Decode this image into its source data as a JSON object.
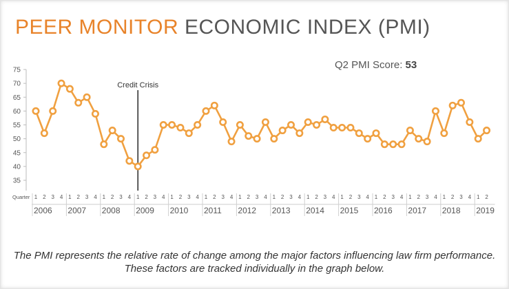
{
  "title": {
    "part1": "PEER MONITOR",
    "part2": "ECONOMIC INDEX (PMI)"
  },
  "score": {
    "label": "Q2 PMI Score:",
    "value": "53"
  },
  "caption": "The PMI represents the relative rate of change among the major factors influencing law firm performance. These factors are tracked individually in the graph below.",
  "colors": {
    "line": "#f0a040",
    "accent": "#e8832a",
    "text": "#555555"
  },
  "chart_data": {
    "type": "line",
    "title": "PEER MONITOR ECONOMIC INDEX (PMI)",
    "xlabel": "Quarter",
    "ylabel": "",
    "ylim": [
      35,
      75
    ],
    "yticks": [
      35,
      40,
      45,
      50,
      55,
      60,
      65,
      70,
      75
    ],
    "grid": false,
    "legend": "none",
    "years": [
      {
        "label": "2006",
        "quarters": [
          "1",
          "2",
          "3",
          "4"
        ]
      },
      {
        "label": "2007",
        "quarters": [
          "1",
          "2",
          "3",
          "4"
        ]
      },
      {
        "label": "2008",
        "quarters": [
          "1",
          "2",
          "3",
          "4"
        ]
      },
      {
        "label": "2009",
        "quarters": [
          "1",
          "2",
          "3",
          "4"
        ]
      },
      {
        "label": "2010",
        "quarters": [
          "1",
          "2",
          "3",
          "4"
        ]
      },
      {
        "label": "2011",
        "quarters": [
          "1",
          "2",
          "3",
          "4"
        ]
      },
      {
        "label": "2012",
        "quarters": [
          "1",
          "2",
          "3",
          "4"
        ]
      },
      {
        "label": "2013",
        "quarters": [
          "1",
          "2",
          "3",
          "4"
        ]
      },
      {
        "label": "2014",
        "quarters": [
          "1",
          "2",
          "3",
          "4"
        ]
      },
      {
        "label": "2015",
        "quarters": [
          "1",
          "2",
          "3",
          "4"
        ]
      },
      {
        "label": "2016",
        "quarters": [
          "1",
          "2",
          "3",
          "4"
        ]
      },
      {
        "label": "2017",
        "quarters": [
          "1",
          "2",
          "3",
          "4"
        ]
      },
      {
        "label": "2018",
        "quarters": [
          "1",
          "2",
          "3",
          "4"
        ]
      },
      {
        "label": "2019",
        "quarters": [
          "1",
          "2"
        ]
      }
    ],
    "values": [
      60,
      52,
      60,
      70,
      68,
      63,
      65,
      59,
      48,
      53,
      50,
      42,
      40,
      44,
      46,
      55,
      55,
      54,
      52,
      55,
      60,
      62,
      56,
      49,
      55,
      51,
      50,
      56,
      50,
      53,
      55,
      52,
      56,
      55,
      57,
      54,
      54,
      54,
      52,
      50,
      52,
      48,
      48,
      48,
      53,
      50,
      49,
      60,
      52,
      62,
      63,
      56,
      50,
      53
    ],
    "annotation": {
      "label": "Credit Crisis",
      "index": 12
    }
  }
}
